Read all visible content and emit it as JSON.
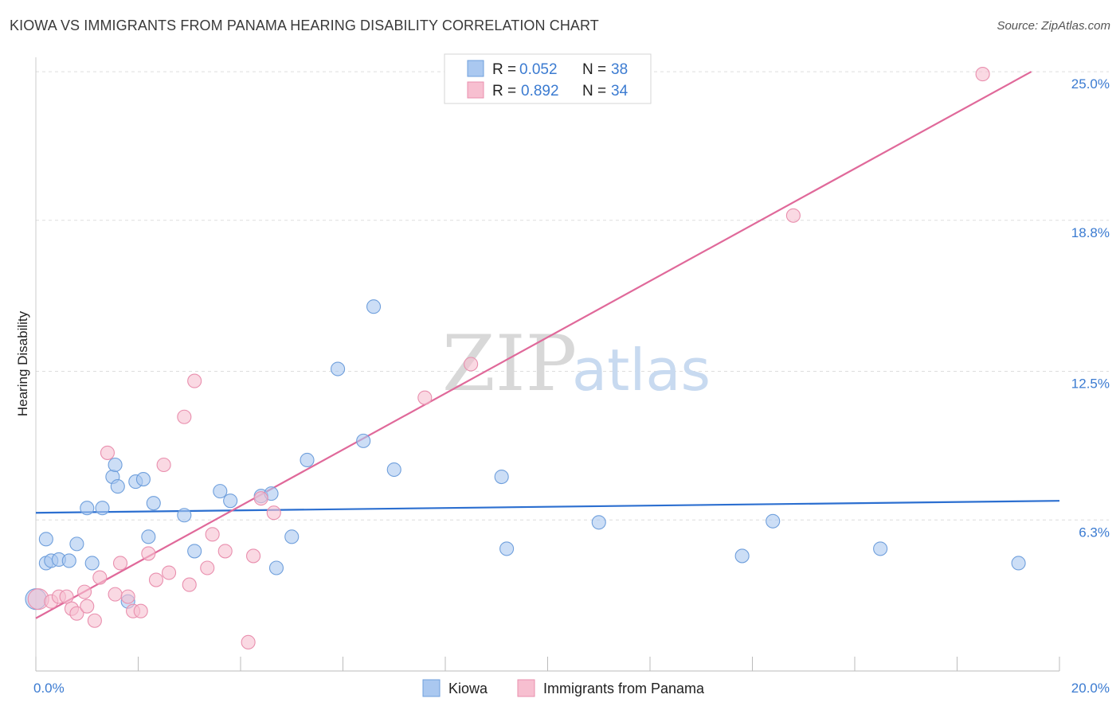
{
  "title": "KIOWA VS IMMIGRANTS FROM PANAMA HEARING DISABILITY CORRELATION CHART",
  "source": "Source: ZipAtlas.com",
  "colors": {
    "kiowa_fill": "#aac8f0",
    "kiowa_stroke": "#6f9fdc",
    "kiowa_line": "#2c6fd0",
    "panama_fill": "#f7bfd0",
    "panama_stroke": "#e98fae",
    "panama_line": "#e0699a",
    "axis_label": "#3b7bd1",
    "grid": "#dddddd"
  },
  "watermark": {
    "zip": "ZIP",
    "atlas": "atlas"
  },
  "legend": {
    "kiowa": {
      "r_label": "R = ",
      "r_value": "0.052",
      "n_label": "N = ",
      "n_value": "38"
    },
    "panama": {
      "r_label": "R = ",
      "r_value": "0.892",
      "n_label": "N = ",
      "n_value": "34"
    }
  },
  "chart_data": {
    "type": "scatter",
    "title": "KIOWA VS IMMIGRANTS FROM PANAMA HEARING DISABILITY CORRELATION CHART",
    "xlabel": "",
    "ylabel": "Hearing Disability",
    "xlim": [
      0,
      20
    ],
    "ylim": [
      0,
      25.6
    ],
    "x_tick_labels": [
      "0.0%",
      "20.0%"
    ],
    "y_ticks": [
      6.3,
      12.5,
      18.8,
      25.0
    ],
    "y_tick_labels": [
      "6.3%",
      "12.5%",
      "18.8%",
      "25.0%"
    ],
    "grid": true,
    "series": [
      {
        "name": "Kiowa",
        "points": [
          [
            0.0,
            3.0
          ],
          [
            0.2,
            4.5
          ],
          [
            0.3,
            4.6
          ],
          [
            0.45,
            4.65
          ],
          [
            0.65,
            4.6
          ],
          [
            0.2,
            5.5
          ],
          [
            0.8,
            5.3
          ],
          [
            1.1,
            4.5
          ],
          [
            1.8,
            2.9
          ],
          [
            2.2,
            5.6
          ],
          [
            3.1,
            5.0
          ],
          [
            5.0,
            5.6
          ],
          [
            4.7,
            4.3
          ],
          [
            1.0,
            6.8
          ],
          [
            1.3,
            6.8
          ],
          [
            2.3,
            7.0
          ],
          [
            2.9,
            6.5
          ],
          [
            1.5,
            8.1
          ],
          [
            1.55,
            8.6
          ],
          [
            1.6,
            7.7
          ],
          [
            1.95,
            7.9
          ],
          [
            2.1,
            8.0
          ],
          [
            3.6,
            7.5
          ],
          [
            3.8,
            7.1
          ],
          [
            4.4,
            7.3
          ],
          [
            4.6,
            7.4
          ],
          [
            5.3,
            8.8
          ],
          [
            6.4,
            9.6
          ],
          [
            5.9,
            12.6
          ],
          [
            6.6,
            15.2
          ],
          [
            7.0,
            8.4
          ],
          [
            9.1,
            8.1
          ],
          [
            9.2,
            5.1
          ],
          [
            11.0,
            6.2
          ],
          [
            13.8,
            4.8
          ],
          [
            14.4,
            6.25
          ],
          [
            16.5,
            5.1
          ],
          [
            19.2,
            4.5
          ]
        ]
      },
      {
        "name": "Immigrants from Panama",
        "points": [
          [
            0.05,
            3.0
          ],
          [
            0.3,
            2.9
          ],
          [
            0.45,
            3.1
          ],
          [
            0.6,
            3.1
          ],
          [
            0.7,
            2.6
          ],
          [
            0.8,
            2.4
          ],
          [
            0.95,
            3.3
          ],
          [
            1.0,
            2.7
          ],
          [
            1.15,
            2.1
          ],
          [
            1.25,
            3.9
          ],
          [
            1.4,
            9.1
          ],
          [
            1.55,
            3.2
          ],
          [
            1.65,
            4.5
          ],
          [
            1.8,
            3.1
          ],
          [
            1.9,
            2.5
          ],
          [
            2.05,
            2.5
          ],
          [
            2.2,
            4.9
          ],
          [
            2.35,
            3.8
          ],
          [
            2.5,
            8.6
          ],
          [
            2.6,
            4.1
          ],
          [
            2.9,
            10.6
          ],
          [
            3.0,
            3.6
          ],
          [
            3.1,
            12.1
          ],
          [
            3.35,
            4.3
          ],
          [
            3.45,
            5.7
          ],
          [
            3.7,
            5.0
          ],
          [
            4.15,
            1.2
          ],
          [
            4.25,
            4.8
          ],
          [
            4.4,
            7.2
          ],
          [
            4.65,
            6.6
          ],
          [
            7.6,
            11.4
          ],
          [
            8.5,
            12.8
          ],
          [
            14.8,
            19.0
          ],
          [
            18.5,
            24.9
          ]
        ]
      }
    ],
    "trend_lines": [
      {
        "series": "Kiowa",
        "x": [
          0,
          20
        ],
        "y": [
          6.6,
          7.1
        ]
      },
      {
        "series": "Immigrants from Panama",
        "x": [
          0,
          19.45
        ],
        "y": [
          2.2,
          25.0
        ]
      }
    ]
  },
  "bottom_legend": [
    "Kiowa",
    "Immigrants from Panama"
  ]
}
